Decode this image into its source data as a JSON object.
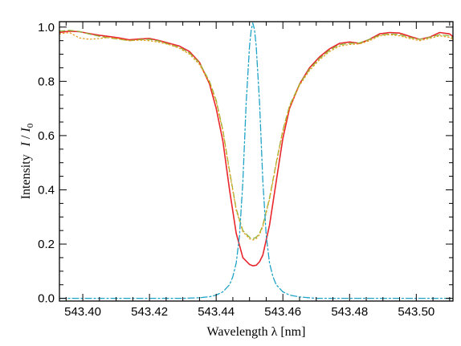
{
  "chart_data": {
    "type": "line",
    "xlabel_parts": [
      "Wavelength ",
      "λ",
      " [nm]"
    ],
    "ylabel_parts": [
      "Intensity",
      "I",
      " / ",
      "I",
      "0"
    ],
    "xlim": [
      543.393,
      543.511
    ],
    "ylim": [
      -0.01,
      1.02
    ],
    "xticks": [
      543.4,
      543.42,
      543.44,
      543.46,
      543.48,
      543.5
    ],
    "xtick_labels": [
      "543.40",
      "543.42",
      "543.44",
      "543.46",
      "543.48",
      "543.50"
    ],
    "yticks": [
      0.0,
      0.2,
      0.4,
      0.6,
      0.8,
      1.0
    ],
    "ytick_labels": [
      "0.0",
      "0.2",
      "0.4",
      "0.6",
      "0.8",
      "1.0"
    ],
    "grid": false,
    "legend": "none",
    "series": [
      {
        "color": "#e8262b",
        "dash": "solid",
        "x": [
          543.393,
          543.396,
          543.399,
          543.402,
          543.405,
          543.408,
          543.411,
          543.414,
          543.417,
          543.42,
          543.423,
          543.426,
          543.429,
          543.432,
          543.435,
          543.438,
          543.44,
          543.442,
          543.444,
          543.446,
          543.448,
          543.45,
          543.451,
          543.452,
          543.453,
          543.454,
          543.456,
          543.458,
          543.46,
          543.462,
          543.465,
          543.468,
          543.471,
          543.474,
          543.477,
          543.48,
          543.483,
          543.486,
          543.489,
          543.492,
          543.495,
          543.498,
          543.501,
          543.504,
          543.507,
          543.51,
          543.511
        ],
        "y": [
          0.98,
          0.985,
          0.983,
          0.976,
          0.97,
          0.965,
          0.96,
          0.953,
          0.956,
          0.958,
          0.95,
          0.94,
          0.93,
          0.91,
          0.87,
          0.79,
          0.7,
          0.58,
          0.4,
          0.24,
          0.15,
          0.125,
          0.12,
          0.122,
          0.135,
          0.16,
          0.27,
          0.43,
          0.59,
          0.7,
          0.79,
          0.85,
          0.89,
          0.92,
          0.94,
          0.945,
          0.94,
          0.955,
          0.975,
          0.98,
          0.978,
          0.966,
          0.955,
          0.963,
          0.98,
          0.975,
          0.965
        ]
      },
      {
        "color": "#8fb43a",
        "dash": "dashed",
        "x": [
          543.393,
          543.396,
          543.399,
          543.402,
          543.405,
          543.408,
          543.411,
          543.414,
          543.417,
          543.42,
          543.423,
          543.426,
          543.429,
          543.432,
          543.435,
          543.438,
          543.44,
          543.442,
          543.444,
          543.446,
          543.448,
          543.45,
          543.451,
          543.452,
          543.453,
          543.454,
          543.456,
          543.458,
          543.46,
          543.462,
          543.465,
          543.468,
          543.471,
          543.474,
          543.477,
          543.48,
          543.483,
          543.486,
          543.489,
          543.492,
          543.495,
          543.498,
          543.501,
          543.504,
          543.507,
          543.51,
          543.511
        ],
        "y": [
          0.985,
          0.988,
          0.984,
          0.974,
          0.966,
          0.96,
          0.955,
          0.95,
          0.954,
          0.955,
          0.948,
          0.936,
          0.925,
          0.905,
          0.868,
          0.8,
          0.73,
          0.62,
          0.47,
          0.33,
          0.25,
          0.225,
          0.22,
          0.225,
          0.24,
          0.27,
          0.37,
          0.5,
          0.62,
          0.71,
          0.79,
          0.845,
          0.885,
          0.915,
          0.935,
          0.94,
          0.942,
          0.955,
          0.97,
          0.975,
          0.972,
          0.962,
          0.955,
          0.962,
          0.972,
          0.968,
          0.96
        ]
      },
      {
        "color": "#e3a020",
        "dash": "dotted",
        "x": [
          543.393,
          543.396,
          543.399,
          543.402,
          543.405,
          543.408,
          543.411,
          543.414,
          543.417,
          543.42,
          543.423,
          543.426,
          543.429,
          543.432,
          543.435,
          543.438,
          543.44,
          543.442,
          543.444,
          543.446,
          543.448,
          543.45,
          543.451,
          543.452,
          543.453,
          543.454,
          543.456,
          543.458,
          543.46,
          543.462,
          543.465,
          543.468,
          543.471,
          543.474,
          543.477,
          543.48,
          543.483,
          543.486,
          543.489,
          543.492,
          543.495,
          543.498,
          543.501,
          543.504,
          543.507,
          543.51,
          543.511
        ],
        "y": [
          0.975,
          0.98,
          0.96,
          0.955,
          0.958,
          0.962,
          0.956,
          0.95,
          0.952,
          0.95,
          0.944,
          0.935,
          0.922,
          0.9,
          0.862,
          0.795,
          0.725,
          0.615,
          0.465,
          0.325,
          0.245,
          0.22,
          0.215,
          0.22,
          0.235,
          0.265,
          0.365,
          0.495,
          0.615,
          0.705,
          0.785,
          0.84,
          0.88,
          0.91,
          0.93,
          0.936,
          0.938,
          0.95,
          0.968,
          0.972,
          0.968,
          0.958,
          0.95,
          0.958,
          0.968,
          0.962,
          0.955
        ]
      },
      {
        "color": "#1fa3c8",
        "dash": "dashdot",
        "x": [
          543.393,
          543.4,
          543.41,
          543.42,
          543.43,
          543.435,
          543.438,
          543.44,
          543.442,
          543.444,
          543.445,
          543.446,
          543.447,
          543.448,
          543.449,
          543.45,
          543.4505,
          543.451,
          543.4515,
          543.452,
          543.453,
          543.454,
          543.455,
          543.456,
          543.457,
          543.458,
          543.46,
          543.462,
          543.465,
          543.47,
          543.48,
          543.49,
          543.5,
          543.511
        ],
        "y": [
          0.0,
          0.0,
          0.0,
          0.0,
          0.0,
          0.002,
          0.006,
          0.012,
          0.024,
          0.05,
          0.08,
          0.13,
          0.23,
          0.43,
          0.72,
          0.93,
          0.99,
          1.015,
          0.99,
          0.93,
          0.72,
          0.43,
          0.23,
          0.13,
          0.08,
          0.05,
          0.024,
          0.012,
          0.005,
          0.0,
          0.0,
          0.0,
          0.0,
          0.0
        ]
      }
    ]
  }
}
